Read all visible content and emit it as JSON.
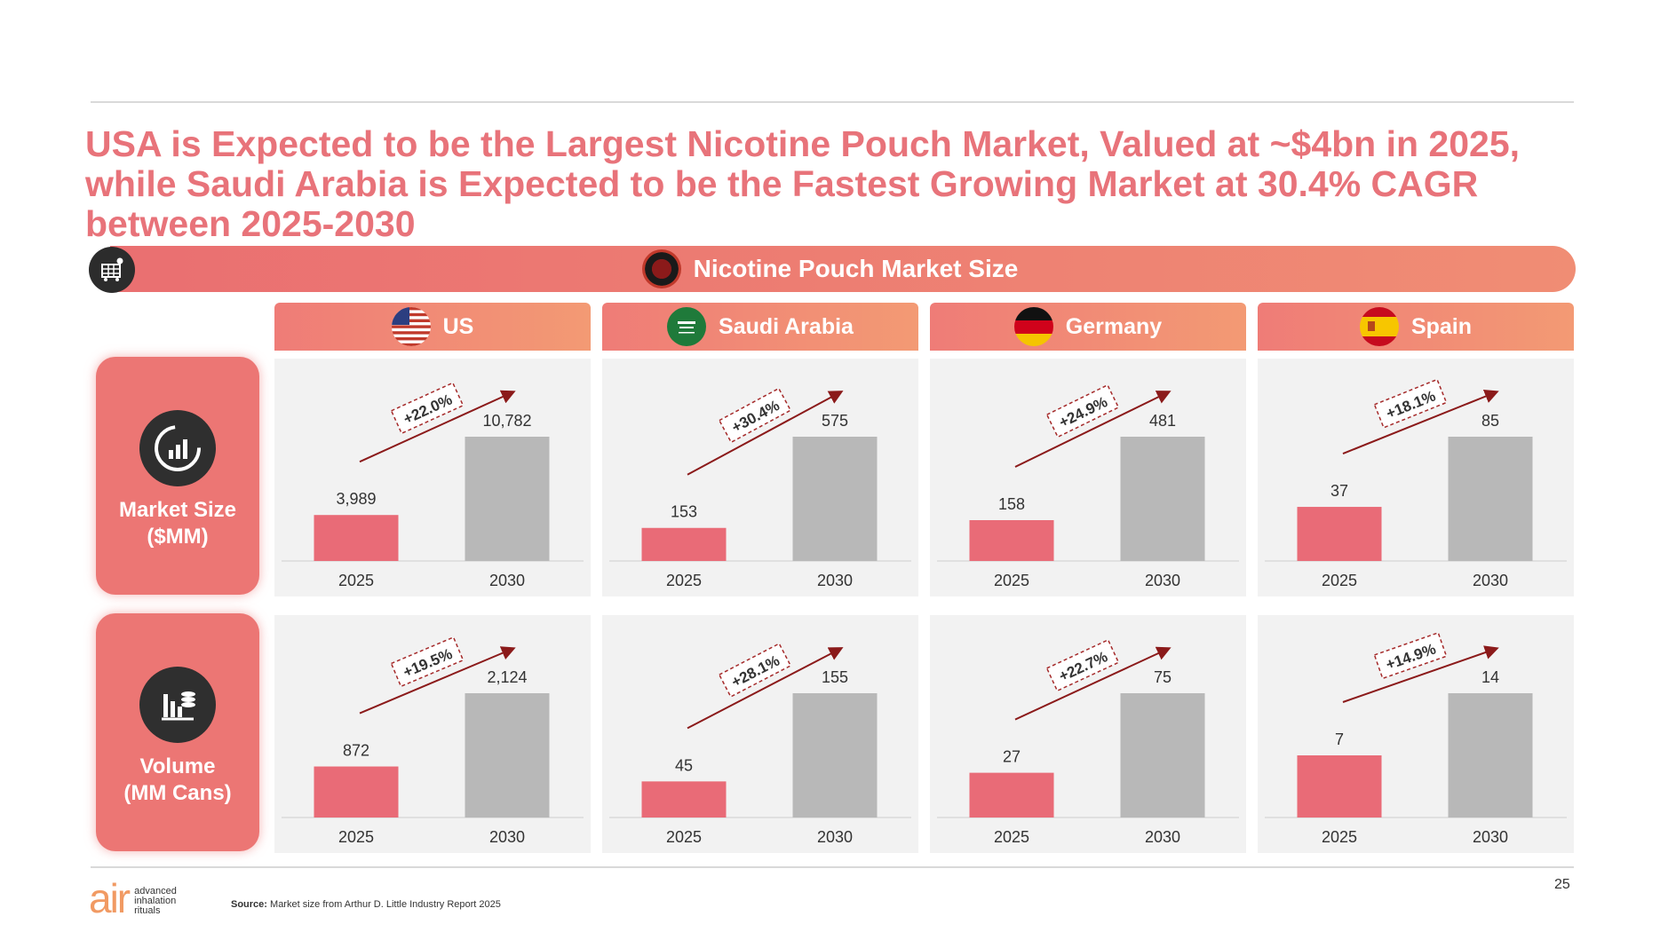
{
  "title": "USA is Expected to be the Largest Nicotine Pouch Market, Valued at ~$4bn in 2025, while Saudi Arabia is Expected to be the Fastest Growing Market at 30.4% CAGR between 2025-2030",
  "banner": {
    "title": "Nicotine Pouch Market Size",
    "icon": "market-cart-icon",
    "title_icon": "nicotine-pouch-icon"
  },
  "columns": [
    {
      "name": "US",
      "flag": "us-flag-icon"
    },
    {
      "name": "Saudi Arabia",
      "flag": "saudi-flag-icon"
    },
    {
      "name": "Germany",
      "flag": "germany-flag-icon"
    },
    {
      "name": "Spain",
      "flag": "spain-flag-icon"
    }
  ],
  "rows": [
    {
      "label_line1": "Market Size",
      "label_line2": "($MM)",
      "icon": "market-size-chart-icon"
    },
    {
      "label_line1": "Volume",
      "label_line2": "(MM Cans)",
      "icon": "volume-cans-icon"
    }
  ],
  "colors": {
    "accent": "#e8737a",
    "bar_2025": "#e96b77",
    "bar_2030": "#b8b8b8",
    "arrow": "#8b1a1a",
    "header_start": "#ef7c77",
    "header_end": "#f39a74"
  },
  "chart_data": [
    {
      "type": "bar",
      "country": "US",
      "metric": "Market Size ($MM)",
      "categories": [
        "2025",
        "2030"
      ],
      "values": [
        3989,
        10782
      ],
      "value_labels": [
        "3,989",
        "10,782"
      ],
      "growth_label": "+22.0%"
    },
    {
      "type": "bar",
      "country": "Saudi Arabia",
      "metric": "Market Size ($MM)",
      "categories": [
        "2025",
        "2030"
      ],
      "values": [
        153,
        575
      ],
      "value_labels": [
        "153",
        "575"
      ],
      "growth_label": "+30.4%"
    },
    {
      "type": "bar",
      "country": "Germany",
      "metric": "Market Size ($MM)",
      "categories": [
        "2025",
        "2030"
      ],
      "values": [
        158,
        481
      ],
      "value_labels": [
        "158",
        "481"
      ],
      "growth_label": "+24.9%"
    },
    {
      "type": "bar",
      "country": "Spain",
      "metric": "Market Size ($MM)",
      "categories": [
        "2025",
        "2030"
      ],
      "values": [
        37,
        85
      ],
      "value_labels": [
        "37",
        "85"
      ],
      "growth_label": "+18.1%"
    },
    {
      "type": "bar",
      "country": "US",
      "metric": "Volume (MM Cans)",
      "categories": [
        "2025",
        "2030"
      ],
      "values": [
        872,
        2124
      ],
      "value_labels": [
        "872",
        "2,124"
      ],
      "growth_label": "+19.5%"
    },
    {
      "type": "bar",
      "country": "Saudi Arabia",
      "metric": "Volume (MM Cans)",
      "categories": [
        "2025",
        "2030"
      ],
      "values": [
        45,
        155
      ],
      "value_labels": [
        "45",
        "155"
      ],
      "growth_label": "+28.1%"
    },
    {
      "type": "bar",
      "country": "Germany",
      "metric": "Volume (MM Cans)",
      "categories": [
        "2025",
        "2030"
      ],
      "values": [
        27,
        75
      ],
      "value_labels": [
        "27",
        "75"
      ],
      "growth_label": "+22.7%"
    },
    {
      "type": "bar",
      "country": "Spain",
      "metric": "Volume (MM Cans)",
      "categories": [
        "2025",
        "2030"
      ],
      "values": [
        7,
        14
      ],
      "value_labels": [
        "7",
        "14"
      ],
      "growth_label": "+14.9%"
    }
  ],
  "footer": {
    "source_label": "Source:",
    "source_text": "Market size from Arthur D. Little Industry Report 2025",
    "page_number": "25",
    "logo_text": "air",
    "logo_tagline": [
      "advanced",
      "inhalation",
      "rituals"
    ]
  }
}
